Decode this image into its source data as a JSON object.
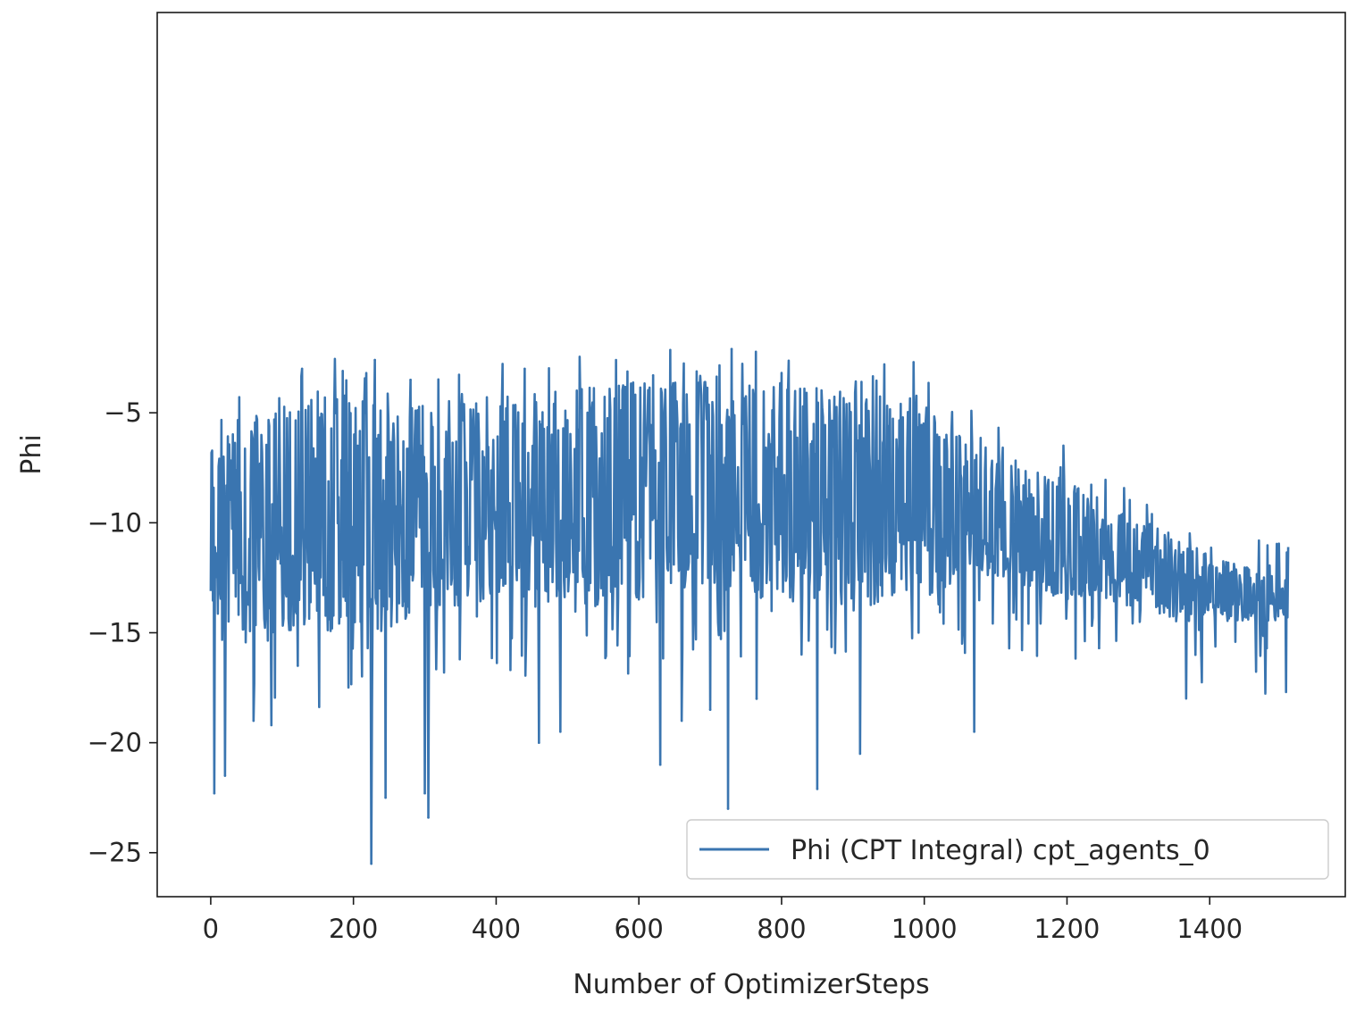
{
  "chart_data": {
    "type": "line",
    "title": "",
    "xlabel": "Number of OptimizerSteps",
    "ylabel": "Phi",
    "xlim": [
      -75,
      1590
    ],
    "ylim": [
      -27,
      13.2
    ],
    "x_ticks": [
      0,
      200,
      400,
      600,
      800,
      1000,
      1200,
      1400
    ],
    "y_ticks": [
      -25,
      -20,
      -15,
      -10,
      -5
    ],
    "x_tick_labels": [
      "0",
      "200",
      "400",
      "600",
      "800",
      "1000",
      "1200",
      "1400"
    ],
    "y_tick_labels": [
      "−25",
      "−20",
      "−15",
      "−10",
      "−5"
    ],
    "grid": false,
    "legend_position": "lower-right",
    "color": "#3a75b0",
    "series": [
      {
        "name": "Phi (CPT Integral) cpt_agents_0",
        "x_range": [
          0,
          1510
        ],
        "envelope": {
          "x": [
            0,
            50,
            100,
            150,
            200,
            250,
            300,
            400,
            500,
            600,
            700,
            800,
            900,
            1000,
            1050,
            1100,
            1150,
            1200,
            1250,
            1300,
            1350,
            1400,
            1450,
            1510
          ],
          "upper": [
            -6,
            -5,
            -4.5,
            -4,
            -4,
            -5,
            -4.5,
            -4.2,
            -4,
            -3.5,
            -3.5,
            -3.5,
            -4,
            -4.5,
            -5.5,
            -7,
            -7.5,
            -8,
            -9,
            -10,
            -10.5,
            -11.5,
            -12,
            -12.5
          ],
          "lower": [
            -14,
            -15,
            -15,
            -15,
            -15.5,
            -15,
            -14,
            -13.5,
            -13.5,
            -13.5,
            -13,
            -13.5,
            -14,
            -13.5,
            -12.5,
            -12.5,
            -13,
            -13.5,
            -13.5,
            -14,
            -14.5,
            -14.5,
            -14.5,
            -14.5
          ]
        },
        "spikes": [
          {
            "x": 5,
            "y": -22.3
          },
          {
            "x": 20,
            "y": -21.5
          },
          {
            "x": 60,
            "y": -19
          },
          {
            "x": 85,
            "y": -19.2
          },
          {
            "x": 122,
            "y": -16.5
          },
          {
            "x": 128,
            "y": -3
          },
          {
            "x": 185,
            "y": -3.1
          },
          {
            "x": 225,
            "y": -25.5
          },
          {
            "x": 230,
            "y": -2.6
          },
          {
            "x": 245,
            "y": -22.5
          },
          {
            "x": 280,
            "y": -3.5
          },
          {
            "x": 300,
            "y": -22.3
          },
          {
            "x": 305,
            "y": -23.4
          },
          {
            "x": 440,
            "y": -3
          },
          {
            "x": 460,
            "y": -20
          },
          {
            "x": 490,
            "y": -19.5
          },
          {
            "x": 620,
            "y": -3.3
          },
          {
            "x": 630,
            "y": -21
          },
          {
            "x": 660,
            "y": -19
          },
          {
            "x": 700,
            "y": -18.5
          },
          {
            "x": 725,
            "y": -23
          },
          {
            "x": 730,
            "y": -2.1
          },
          {
            "x": 765,
            "y": -18
          },
          {
            "x": 850,
            "y": -22.1
          },
          {
            "x": 910,
            "y": -20.5
          },
          {
            "x": 985,
            "y": -2.7
          },
          {
            "x": 1070,
            "y": -19.5
          },
          {
            "x": 1245,
            "y": -15.7
          },
          {
            "x": 1380,
            "y": -16
          },
          {
            "x": 1480,
            "y": -15.7
          }
        ]
      }
    ]
  }
}
